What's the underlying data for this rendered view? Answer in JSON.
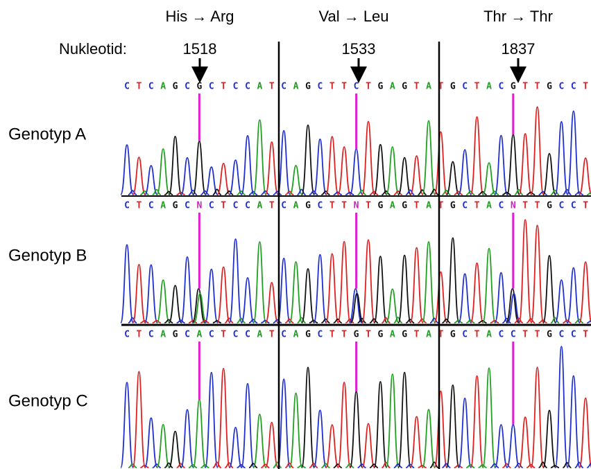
{
  "header": {
    "mutations": [
      "His → Arg",
      "Val → Leu",
      "Thr → Thr"
    ],
    "nucleotide_label": "Nukleotid:",
    "positions": [
      1518,
      1533,
      1837
    ]
  },
  "rows": [
    {
      "label": "Genotyp A",
      "bases": [
        "C",
        "T",
        "C",
        "A",
        "G",
        "C",
        "G",
        "C",
        "T",
        "C",
        "C",
        "A",
        "T",
        "C",
        "A",
        "G",
        "C",
        "T",
        "T",
        "C",
        "T",
        "G",
        "A",
        "G",
        "T",
        "A",
        "T",
        "G",
        "C",
        "T",
        "A",
        "C",
        "G",
        "T",
        "T",
        "G",
        "C",
        "C",
        "T"
      ]
    },
    {
      "label": "Genotyp B",
      "bases": [
        "C",
        "T",
        "C",
        "A",
        "G",
        "C",
        "N",
        "C",
        "T",
        "C",
        "C",
        "A",
        "T",
        "C",
        "A",
        "G",
        "C",
        "T",
        "T",
        "N",
        "T",
        "G",
        "A",
        "G",
        "T",
        "A",
        "T",
        "G",
        "C",
        "T",
        "A",
        "C",
        "N",
        "T",
        "T",
        "G",
        "C",
        "C",
        "T"
      ]
    },
    {
      "label": "Genotyp C",
      "bases": [
        "C",
        "T",
        "C",
        "A",
        "G",
        "C",
        "A",
        "C",
        "T",
        "C",
        "C",
        "A",
        "T",
        "C",
        "A",
        "G",
        "C",
        "T",
        "T",
        "G",
        "T",
        "G",
        "A",
        "G",
        "T",
        "A",
        "T",
        "G",
        "C",
        "T",
        "A",
        "C",
        "C",
        "T",
        "T",
        "G",
        "C",
        "C",
        "T"
      ]
    }
  ]
}
